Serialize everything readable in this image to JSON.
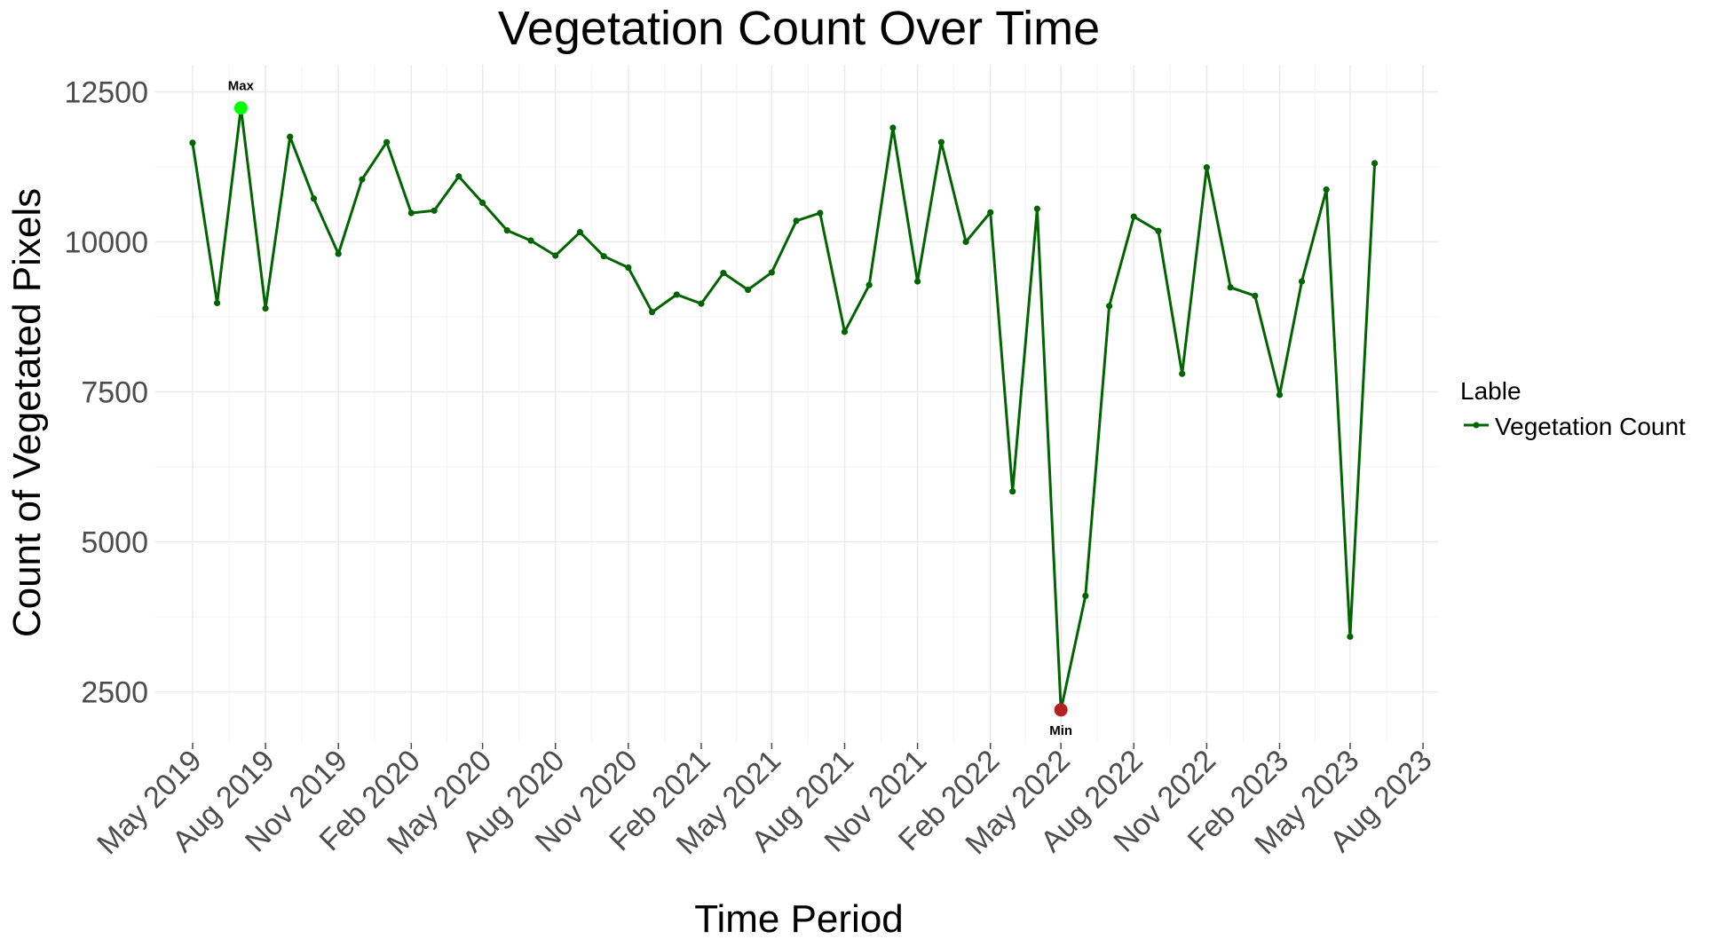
{
  "chart_data": {
    "type": "line",
    "title": "Vegetation Count Over Time",
    "xlabel": "Time Period",
    "ylabel": "Count of Vegetated Pixels",
    "x_tick_labels": [
      "May 2019",
      "Aug 2019",
      "Nov 2019",
      "Feb 2020",
      "May 2020",
      "Aug 2020",
      "Nov 2020",
      "Feb 2021",
      "May 2021",
      "Aug 2021",
      "Nov 2021",
      "Feb 2022",
      "May 2022",
      "Aug 2022",
      "Nov 2022",
      "Feb 2023",
      "May 2023",
      "Aug 2023"
    ],
    "y_ticks": [
      2500,
      5000,
      7500,
      10000,
      12500
    ],
    "ylim": [
      1650,
      12950
    ],
    "xlim": [
      "2019-03-15",
      "2023-08-20"
    ],
    "grid": true,
    "legend": {
      "title": "Lable",
      "position": "right",
      "entries": [
        "Vegetation Count"
      ]
    },
    "series": [
      {
        "name": "Vegetation Count",
        "color": "#006400",
        "x": [
          "2019-05-01",
          "2019-06-01",
          "2019-07-01",
          "2019-08-01",
          "2019-09-01",
          "2019-10-01",
          "2019-11-01",
          "2019-12-01",
          "2020-01-01",
          "2020-02-01",
          "2020-03-01",
          "2020-04-01",
          "2020-05-01",
          "2020-06-01",
          "2020-07-01",
          "2020-08-01",
          "2020-09-01",
          "2020-10-01",
          "2020-11-01",
          "2020-12-01",
          "2021-01-01",
          "2021-02-01",
          "2021-03-01",
          "2021-04-01",
          "2021-05-01",
          "2021-06-01",
          "2021-07-01",
          "2021-08-01",
          "2021-09-01",
          "2021-10-01",
          "2021-11-01",
          "2021-12-01",
          "2022-01-01",
          "2022-02-01",
          "2022-03-01",
          "2022-04-01",
          "2022-05-01",
          "2022-06-01",
          "2022-07-01",
          "2022-08-01",
          "2022-09-01",
          "2022-10-01",
          "2022-11-01",
          "2022-12-01",
          "2023-01-01",
          "2023-02-01",
          "2023-03-01",
          "2023-04-01",
          "2023-05-01",
          "2023-06-01"
        ],
        "values": [
          11650,
          8980,
          12230,
          8890,
          11750,
          10720,
          9800,
          11040,
          11660,
          10480,
          10520,
          11090,
          10650,
          10190,
          10020,
          9770,
          10160,
          9760,
          9570,
          8830,
          9120,
          8970,
          9480,
          9200,
          9490,
          10350,
          10480,
          8500,
          9280,
          11900,
          9340,
          11660,
          10000,
          10490,
          5840,
          10550,
          2200,
          4100,
          8930,
          10420,
          10180,
          7800,
          11240,
          9240,
          9100,
          7450,
          9340,
          10870,
          3420,
          11310
        ]
      }
    ],
    "annotations": [
      {
        "label": "Max",
        "x": "2019-07-01",
        "y": 12230,
        "color": "#00ff00"
      },
      {
        "label": "Min",
        "x": "2022-05-01",
        "y": 2200,
        "color": "#b22222"
      }
    ]
  }
}
